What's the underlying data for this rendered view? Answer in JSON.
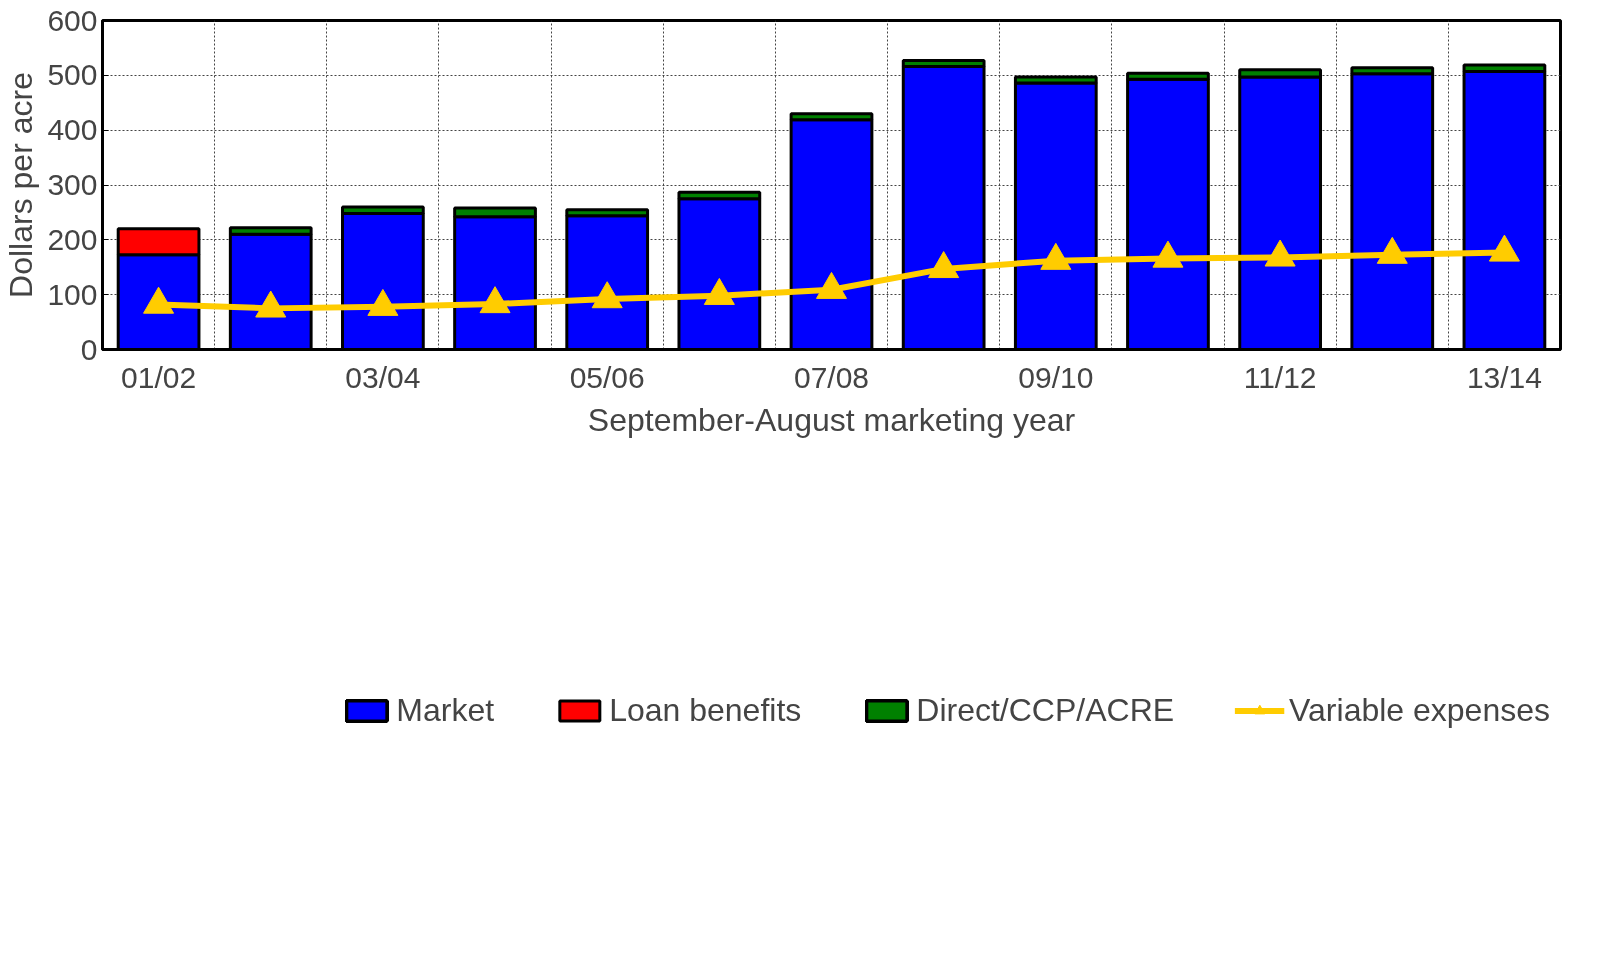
{
  "chart_data": {
    "type": "bar",
    "stacked": true,
    "xlabel": "September-August marketing year",
    "ylabel": "Dollars per acre",
    "categories": [
      "01/02",
      null,
      "03/04",
      null,
      "05/06",
      null,
      "07/08",
      null,
      "09/10",
      null,
      "11/12",
      null,
      "13/14"
    ],
    "ylim": [
      0,
      600
    ],
    "yticks": [
      0,
      100,
      200,
      300,
      400,
      500,
      600
    ],
    "grid": true,
    "legend": "bottom",
    "series": [
      {
        "name": "Market",
        "color": "#0000ff",
        "values": [
          173,
          210,
          248,
          242,
          244,
          275,
          419,
          516,
          486,
          493,
          497,
          503,
          507
        ]
      },
      {
        "name": "Loan benefits",
        "color": "#ff0000",
        "values": [
          47,
          null,
          null,
          null,
          null,
          null,
          null,
          null,
          null,
          null,
          null,
          null,
          null
        ]
      },
      {
        "name": "Direct/CCP/ACRE",
        "color": "#008000",
        "values": [
          null,
          12,
          12,
          16,
          11,
          12,
          11,
          11,
          11,
          11,
          13,
          11,
          12
        ]
      },
      {
        "name": "Variable expenses",
        "color": "#ffcc00",
        "type": "line",
        "marker": "triangle",
        "values": [
          82,
          75,
          78,
          83,
          92,
          98,
          109,
          147,
          162,
          166,
          168,
          173,
          177
        ]
      }
    ]
  }
}
